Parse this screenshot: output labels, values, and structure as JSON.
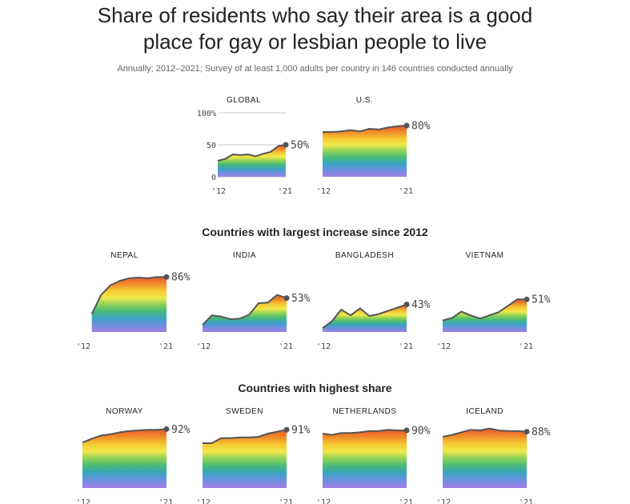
{
  "header": {
    "title_line1": "Share of residents who say their area is a good",
    "title_line2": "place for gay or lesbian people to live",
    "subtitle": "Annually; 2012–2021; Survey of at least 1,000 adults per country in 146 countries conducted annually"
  },
  "sections": {
    "increase": "Countries with largest increase since 2012",
    "highest": "Countries with highest share"
  },
  "colors": {
    "gradient_top_to_bottom": [
      "#e8582e",
      "#f08a2a",
      "#f4c832",
      "#f2e84b",
      "#8cd257",
      "#46b97a",
      "#3ba3c4",
      "#6f8fe0",
      "#a27ee6"
    ],
    "line": "#555555",
    "dot": "#555555"
  },
  "chart_data": [
    {
      "type": "area",
      "name": "GLOBAL",
      "x": [
        2012,
        2013,
        2014,
        2015,
        2016,
        2017,
        2018,
        2019,
        2020,
        2021
      ],
      "values": [
        25,
        28,
        35,
        34,
        35,
        32,
        36,
        39,
        48,
        50
      ],
      "end_label": "50%",
      "ylim": [
        0,
        100
      ],
      "yticks": [
        "100%",
        "50",
        "0"
      ],
      "xticks": [
        "'12",
        "'21"
      ]
    },
    {
      "type": "area",
      "name": "U.S.",
      "x": [
        2012,
        2013,
        2014,
        2015,
        2016,
        2017,
        2018,
        2019,
        2020,
        2021
      ],
      "values": [
        70,
        70,
        71,
        73,
        71,
        75,
        74,
        77,
        79,
        80
      ],
      "end_label": "80%",
      "ylim": [
        0,
        100
      ],
      "xticks": [
        "'12",
        "'21"
      ]
    },
    {
      "type": "area",
      "name": "NEPAL",
      "x": [
        2013,
        2014,
        2015,
        2016,
        2017,
        2018,
        2019,
        2020,
        2021
      ],
      "values": [
        28,
        58,
        73,
        80,
        84,
        85,
        84,
        86,
        86
      ],
      "end_label": "86%",
      "ylim": [
        0,
        100
      ],
      "xticks": [
        "'12",
        "'21"
      ]
    },
    {
      "type": "area",
      "name": "INDIA",
      "x": [
        2012,
        2013,
        2014,
        2015,
        2016,
        2017,
        2018,
        2019,
        2020,
        2021
      ],
      "values": [
        11,
        26,
        24,
        20,
        21,
        27,
        45,
        46,
        58,
        53
      ],
      "end_label": "53%",
      "ylim": [
        0,
        100
      ],
      "xticks": [
        "'12",
        "'21"
      ]
    },
    {
      "type": "area",
      "name": "BANGLADESH",
      "x": [
        2012,
        2013,
        2014,
        2015,
        2016,
        2017,
        2018,
        2019,
        2020,
        2021
      ],
      "values": [
        6,
        17,
        35,
        26,
        37,
        25,
        28,
        33,
        38,
        43
      ],
      "end_label": "43%",
      "ylim": [
        0,
        100
      ],
      "xticks": [
        "'12",
        "'21"
      ]
    },
    {
      "type": "area",
      "name": "VIETNAM",
      "x": [
        2012,
        2013,
        2014,
        2015,
        2016,
        2017,
        2018,
        2019,
        2020,
        2021
      ],
      "values": [
        18,
        22,
        32,
        26,
        21,
        26,
        31,
        41,
        51,
        51
      ],
      "end_label": "51%",
      "ylim": [
        0,
        100
      ],
      "xticks": [
        "'12",
        "'21"
      ]
    },
    {
      "type": "area",
      "name": "NORWAY",
      "x": [
        2012,
        2013,
        2014,
        2015,
        2016,
        2017,
        2018,
        2019,
        2020,
        2021
      ],
      "values": [
        71,
        77,
        82,
        84,
        87,
        89,
        90,
        91,
        91,
        92
      ],
      "end_label": "92%",
      "ylim": [
        0,
        100
      ],
      "xticks": [
        "'12",
        "'21"
      ]
    },
    {
      "type": "area",
      "name": "SWEDEN",
      "x": [
        2012,
        2013,
        2014,
        2015,
        2016,
        2017,
        2018,
        2019,
        2020,
        2021
      ],
      "values": [
        70,
        70,
        78,
        78,
        79,
        79,
        80,
        85,
        88,
        91
      ],
      "end_label": "91%",
      "ylim": [
        0,
        100
      ],
      "xticks": [
        "'12",
        "'21"
      ]
    },
    {
      "type": "area",
      "name": "NETHERLANDS",
      "x": [
        2012,
        2013,
        2014,
        2015,
        2016,
        2017,
        2018,
        2019,
        2020,
        2021
      ],
      "values": [
        85,
        83,
        86,
        86,
        87,
        89,
        89,
        91,
        90,
        90
      ],
      "end_label": "90%",
      "ylim": [
        0,
        100
      ],
      "xticks": [
        "'12",
        "'21"
      ]
    },
    {
      "type": "area",
      "name": "ICELAND",
      "x": [
        2012,
        2013,
        2014,
        2015,
        2016,
        2017,
        2018,
        2019,
        2020,
        2021
      ],
      "values": [
        80,
        83,
        87,
        91,
        90,
        93,
        90,
        89,
        89,
        88
      ],
      "end_label": "88%",
      "ylim": [
        0,
        100
      ],
      "xticks": [
        "'12",
        "'21"
      ]
    }
  ]
}
